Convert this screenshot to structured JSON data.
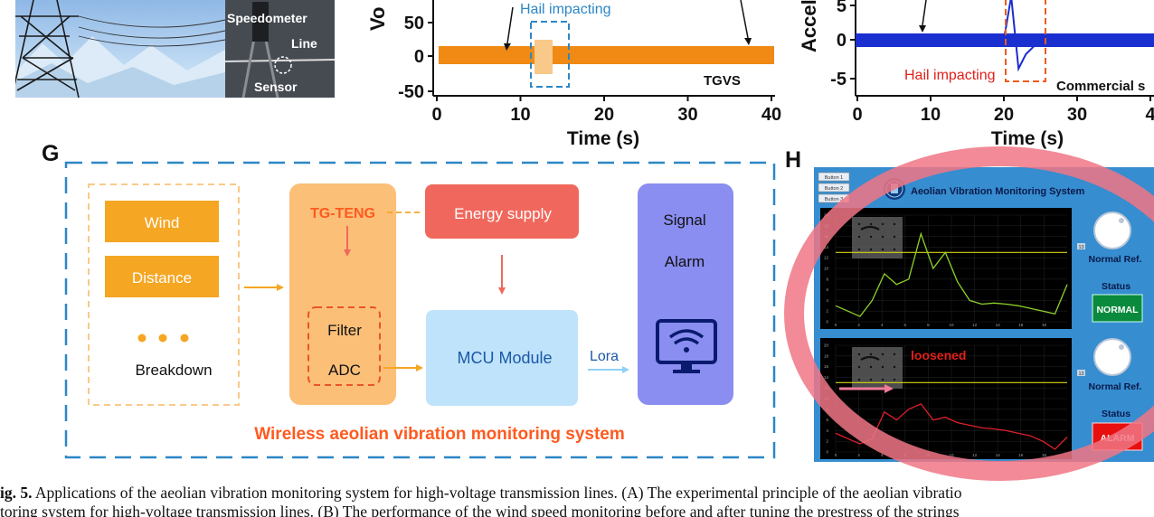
{
  "panel_photo": {
    "labels": [
      "Speedometer",
      "Line",
      "Sensor"
    ]
  },
  "colors": {
    "orange": "#f5a623",
    "orange_light": "#f9c98a",
    "blue_dash": "#2c87c6",
    "energy_red": "#f0685d",
    "mcu_blue": "#bfe3fa",
    "signal_blue": "#8a8ef0",
    "teng_orange": "#fbbf78",
    "title_orange": "#ff5a1f",
    "red_circle": "#f07585",
    "panel_blue": "#3d96d8"
  },
  "chart_data": [
    {
      "type": "line",
      "title": "",
      "xlabel": "Time (s)",
      "ylabel": "Vo",
      "xlim": [
        0,
        40
      ],
      "xticks": [
        "0",
        "10",
        "20",
        "30",
        "40"
      ],
      "yticks_visible": [
        "50",
        "0",
        "-50"
      ],
      "annotations": [
        "Hail impacting",
        "TGVS"
      ],
      "series": [
        {
          "values_description_free": true,
          "x": [
            0,
            11,
            12,
            13,
            15,
            16,
            40
          ],
          "y": [
            10,
            10,
            24,
            -20,
            10,
            10,
            10
          ]
        }
      ]
    },
    {
      "type": "line",
      "title": "",
      "xlabel": "Time (s)",
      "ylabel": "Accel",
      "xlim": [
        0,
        40
      ],
      "xticks": [
        "0",
        "10",
        "20",
        "30",
        "4"
      ],
      "yticks_visible": [
        "5",
        "0",
        "-5"
      ],
      "annotations": [
        "Hail impacting",
        "Commercial s"
      ],
      "series": [
        {
          "x": [
            0,
            20,
            21,
            22,
            23,
            24,
            26,
            28,
            40
          ],
          "y": [
            0,
            0,
            6,
            -4,
            -2,
            -1,
            0.5,
            0,
            0
          ]
        }
      ]
    },
    {
      "type": "line",
      "title": "",
      "ylim": [
        0,
        20
      ],
      "xticks": [
        "0",
        "2",
        "4",
        "6",
        "8",
        "10",
        "12",
        "14",
        "16",
        "18"
      ],
      "threshold": 13,
      "series": [
        {
          "name": "",
          "x": [
            0,
            1,
            2,
            3,
            4,
            5,
            6,
            7,
            8,
            9,
            10,
            11,
            12,
            13,
            14,
            15,
            16,
            17,
            18,
            19
          ],
          "y": [
            3,
            2,
            1,
            4,
            9,
            7,
            8,
            16.5,
            10,
            13,
            7.5,
            4,
            3.3,
            3.5,
            3.3,
            3,
            2.5,
            2,
            1.5,
            7
          ]
        }
      ]
    },
    {
      "type": "line",
      "title": "",
      "ylim": [
        0,
        20
      ],
      "xticks": [
        "0",
        "2",
        "4",
        "6",
        "8",
        "10",
        "12",
        "14",
        "16",
        "18"
      ],
      "threshold": 13,
      "series": [
        {
          "name": "",
          "x": [
            0,
            1,
            2,
            3,
            4,
            5,
            6,
            7,
            8,
            9,
            10,
            11,
            12,
            13,
            14,
            15,
            16,
            17,
            18,
            19
          ],
          "y": [
            3.5,
            2.5,
            1.5,
            2.5,
            7.5,
            6,
            8,
            9,
            6,
            6.5,
            5.5,
            5,
            4.5,
            4.3,
            4,
            3.5,
            3,
            2,
            0.5,
            2.8
          ]
        }
      ]
    }
  ],
  "panel_g": {
    "label": "G",
    "inputs": [
      "Wind",
      "Distance"
    ],
    "dots": "• • •",
    "breakdown": "Breakdown",
    "teng": "TG-TENG",
    "filter": "Filter",
    "adc": "ADC",
    "energy": "Energy supply",
    "mcu": "MCU Module",
    "lora": "Lora",
    "signal": "Signal",
    "alarm": "Alarm",
    "title": "Wireless aeolian vibration monitoring system"
  },
  "panel_h": {
    "label": "H",
    "app_title": "Aeolian Vibration Monitoring System",
    "buttons": [
      "Button 1",
      "Button 2",
      "Button 3"
    ],
    "normal_ref": "Normal Ref.",
    "status_label": "Status",
    "threshold_value": "13",
    "status_normal": "NORMAL",
    "status_alarm": "ALARM",
    "loosened": "loosened"
  },
  "caption": {
    "fig_label": "ig. 5.",
    "line1": " Applications of the aeolian vibration monitoring system for high-voltage transmission lines. (A) The experimental principle of the aeolian vibratio",
    "line2": "toring system for high-voltage transmission lines. (B) The performance of the wind speed monitoring before and after tuning the prestress of the strings"
  }
}
